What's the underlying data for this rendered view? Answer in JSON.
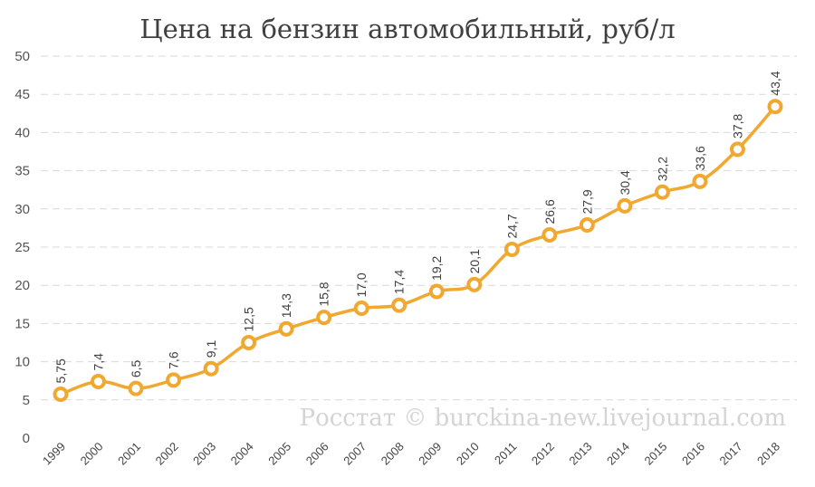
{
  "chart_data": {
    "type": "line",
    "title": "Цена на бензин автомобильный, руб/л",
    "watermark": "Росстат © burckina-new.livejournal.com",
    "x": [
      "1999",
      "2000",
      "2001",
      "2002",
      "2003",
      "2004",
      "2005",
      "2006",
      "2007",
      "2008",
      "2009",
      "2010",
      "2011",
      "2012",
      "2013",
      "2014",
      "2015",
      "2016",
      "2017",
      "2018"
    ],
    "values": [
      5.75,
      7.4,
      6.5,
      7.6,
      9.1,
      12.5,
      14.3,
      15.8,
      17.0,
      17.4,
      19.2,
      20.1,
      24.7,
      26.6,
      27.9,
      30.4,
      32.2,
      33.6,
      37.8,
      43.4
    ],
    "data_labels": [
      "5,75",
      "7,4",
      "6,5",
      "7,6",
      "9,1",
      "12,5",
      "14,3",
      "15,8",
      "17,0",
      "17,4",
      "19,2",
      "20,1",
      "24,7",
      "26,6",
      "27,9",
      "30,4",
      "32,2",
      "33,6",
      "37,8",
      "43,4"
    ],
    "yticks": [
      "0",
      "5",
      "10",
      "15",
      "20",
      "25",
      "30",
      "35",
      "40",
      "45",
      "50"
    ],
    "ylim": [
      0,
      50
    ],
    "grid": true,
    "color": "#f0a830"
  }
}
